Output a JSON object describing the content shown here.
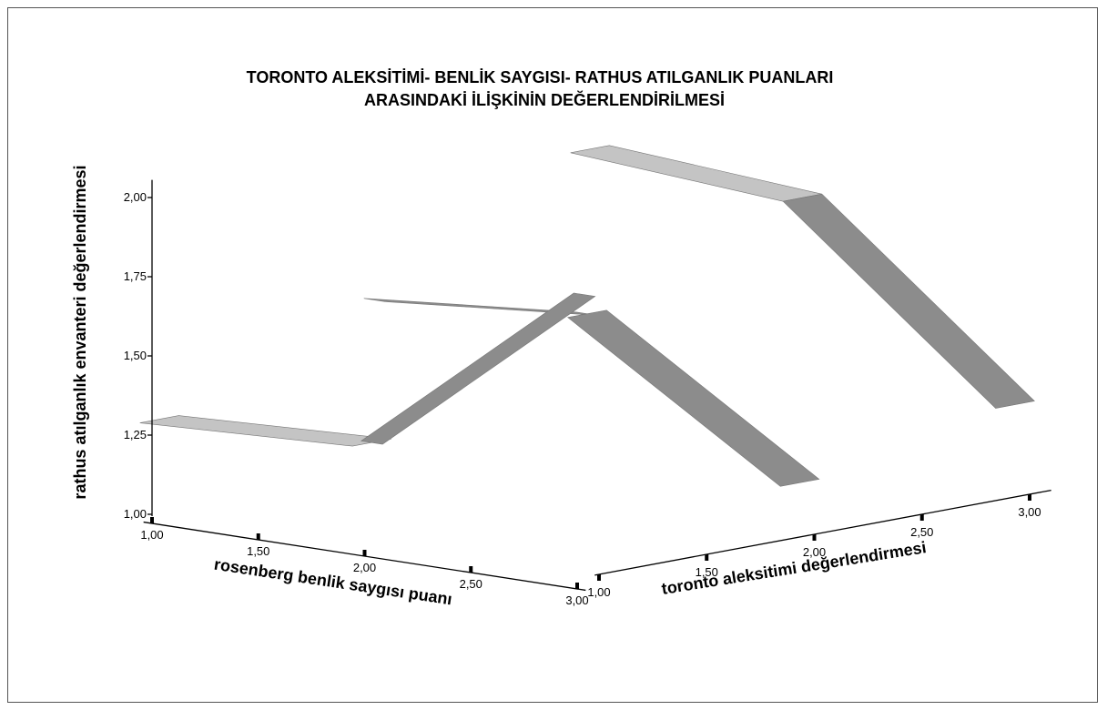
{
  "title": {
    "line1": "TORONTO ALEKSİTİMİ-  BENLİK SAYGISI- RATHUS ATILGANLIK PUANLARI",
    "line2": "ARASINDAKİ  İLİŞKİNİN DEĞERLENDİRİLMESİ"
  },
  "chart_data": {
    "type": "line",
    "projection": "3d",
    "title": "TORONTO ALEKSİTİMİ-  BENLİK SAYGISI- RATHUS ATILGANLIK PUANLARI ARASINDAKİ  İLİŞKİNİN DEĞERLENDİRİLMESİ",
    "xlabel": "rosenberg benlik saygısı puanı",
    "zlabel": "toronto aleksitimi değerlendirmesi",
    "ylabel": "rathus atılganlık envanteri değerlendirmesi",
    "x_ticks": [
      "1,00",
      "1,50",
      "2,00",
      "2,50",
      "3,00"
    ],
    "z_ticks": [
      "1,00",
      "1,50",
      "2,00",
      "2,50",
      "3,00"
    ],
    "y_ticks": [
      "1,00",
      "1,25",
      "1,50",
      "1,75",
      "2,00"
    ],
    "xlim": [
      1,
      3
    ],
    "zlim": [
      1,
      3
    ],
    "ylim": [
      1,
      2
    ],
    "series": [
      {
        "z": 1,
        "x": [
          1,
          2,
          3
        ],
        "values": [
          1.3,
          1.33,
          1.9
        ]
      },
      {
        "z": 2,
        "x": [
          1,
          2,
          3
        ],
        "values": [
          1.55,
          1.61,
          1.18
        ]
      },
      {
        "z": 3,
        "x": [
          1,
          2,
          3
        ],
        "values": [
          1.9,
          1.85,
          1.3
        ]
      }
    ],
    "colors": {
      "ribbon_top": "#c4c4c4",
      "ribbon_side": "#8c8c8c",
      "axis": "#000000"
    }
  }
}
